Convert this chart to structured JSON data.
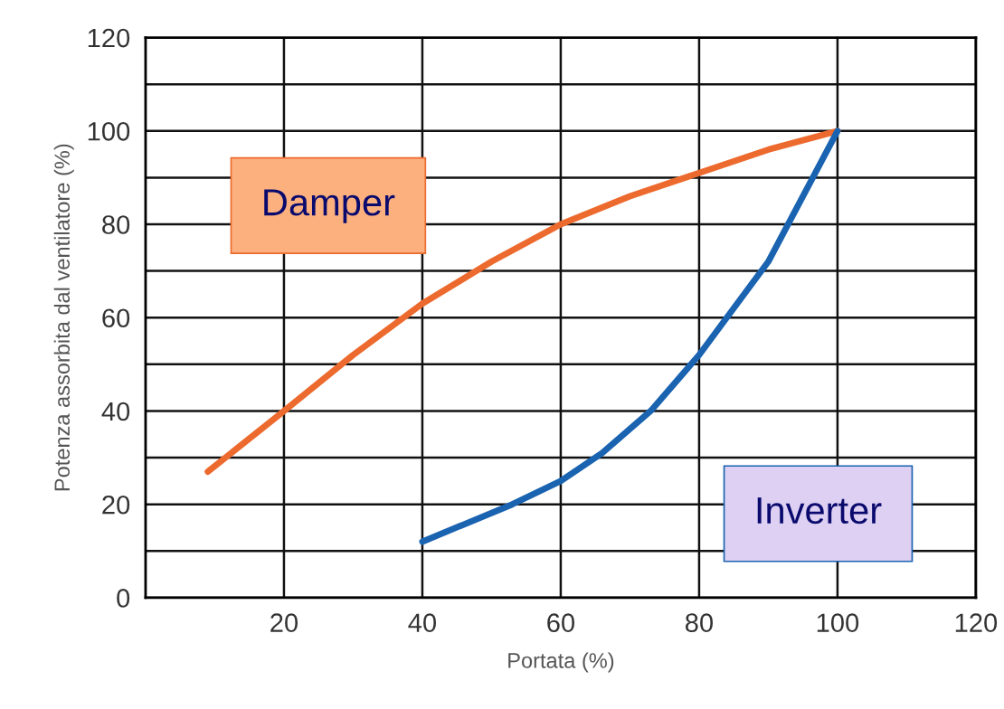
{
  "chart_data": {
    "type": "line",
    "xlabel": "Portata (%)",
    "ylabel": "Potenza assorbita dal ventilatore (%)",
    "xlim": [
      0,
      120
    ],
    "ylim": [
      0,
      120
    ],
    "xticks": [
      20,
      40,
      60,
      80,
      100,
      120
    ],
    "yticks": [
      0,
      {
        "value": 10,
        "label": null
      },
      20,
      {
        "value": 30,
        "label": null
      },
      40,
      {
        "value": 50,
        "label": null
      },
      60,
      {
        "value": 70,
        "label": null
      },
      80,
      {
        "value": 90,
        "label": null
      },
      100,
      {
        "value": 110,
        "label": null
      },
      120
    ],
    "grid": true,
    "legend": false,
    "marker": "none",
    "line_style": "solid",
    "series": [
      {
        "name": "Damper",
        "color": "#ed6a2e",
        "x": [
          9,
          20,
          30,
          40,
          50,
          60,
          70,
          80,
          90,
          100
        ],
        "values": [
          27,
          40,
          52,
          63,
          72,
          80,
          86,
          91,
          96,
          100
        ]
      },
      {
        "name": "Inverter",
        "color": "#1a63b0",
        "x": [
          40,
          53,
          60,
          66,
          73,
          80,
          90,
          100
        ],
        "values": [
          12,
          20,
          25,
          31,
          40,
          52,
          72,
          100
        ]
      }
    ]
  }
}
